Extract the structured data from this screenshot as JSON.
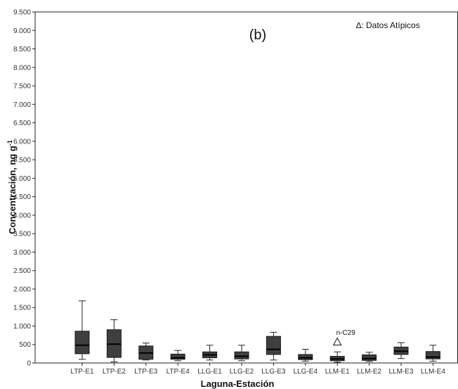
{
  "chart_data": {
    "type": "boxplot",
    "panel_label": "(b)",
    "legend_note": "∆: Datos Atípicos",
    "xlabel": "Laguna-Estación",
    "ylabel": "Concentración, ng g",
    "ylabel_superscript": "-1",
    "ylim": [
      0,
      9500
    ],
    "y_ticks": [
      0,
      500,
      1000,
      1500,
      2000,
      2500,
      3000,
      3500,
      4000,
      4500,
      5000,
      5500,
      6000,
      6500,
      7000,
      7500,
      8000,
      8500,
      9000,
      9500
    ],
    "y_tick_labels": [
      "0",
      "500",
      "1.000",
      "1.500",
      "2.000",
      "2.500",
      "3.000",
      "3.500",
      "4.000",
      "4.500",
      "5.000",
      "5.500",
      "6.000",
      "6.500",
      "7.000",
      "7.500",
      "8.000",
      "8.500",
      "9.000",
      "9.500"
    ],
    "grid": false,
    "box_color": "#3f3f3f",
    "categories": [
      "LTP-E1",
      "LTP-E2",
      "LTP-E3",
      "LTP-E4",
      "LLG-E1",
      "LLG-E2",
      "LLG-E3",
      "LLG-E4",
      "LLM-E1",
      "LLM-E2",
      "LLM-E3",
      "LLM-E4"
    ],
    "boxes": [
      {
        "min": 100,
        "q1": 250,
        "median": 480,
        "q3": 860,
        "max": 1680
      },
      {
        "min": 30,
        "q1": 150,
        "median": 510,
        "q3": 900,
        "max": 1170
      },
      {
        "min": 80,
        "q1": 100,
        "median": 270,
        "q3": 460,
        "max": 540
      },
      {
        "min": 60,
        "q1": 100,
        "median": 140,
        "q3": 240,
        "max": 340
      },
      {
        "min": 80,
        "q1": 140,
        "median": 220,
        "q3": 300,
        "max": 480
      },
      {
        "min": 60,
        "q1": 110,
        "median": 180,
        "q3": 300,
        "max": 480
      },
      {
        "min": 80,
        "q1": 230,
        "median": 370,
        "q3": 720,
        "max": 830
      },
      {
        "min": 50,
        "q1": 90,
        "median": 140,
        "q3": 230,
        "max": 370
      },
      {
        "min": 20,
        "q1": 60,
        "median": 110,
        "q3": 180,
        "max": 300
      },
      {
        "min": 40,
        "q1": 70,
        "median": 120,
        "q3": 220,
        "max": 290
      },
      {
        "min": 120,
        "q1": 230,
        "median": 320,
        "q3": 430,
        "max": 550
      },
      {
        "min": 50,
        "q1": 110,
        "median": 160,
        "q3": 310,
        "max": 480
      }
    ],
    "outliers": [
      {
        "category": "LLM-E1",
        "value": 570,
        "label": "n-C29",
        "marker": "triangle"
      }
    ]
  }
}
